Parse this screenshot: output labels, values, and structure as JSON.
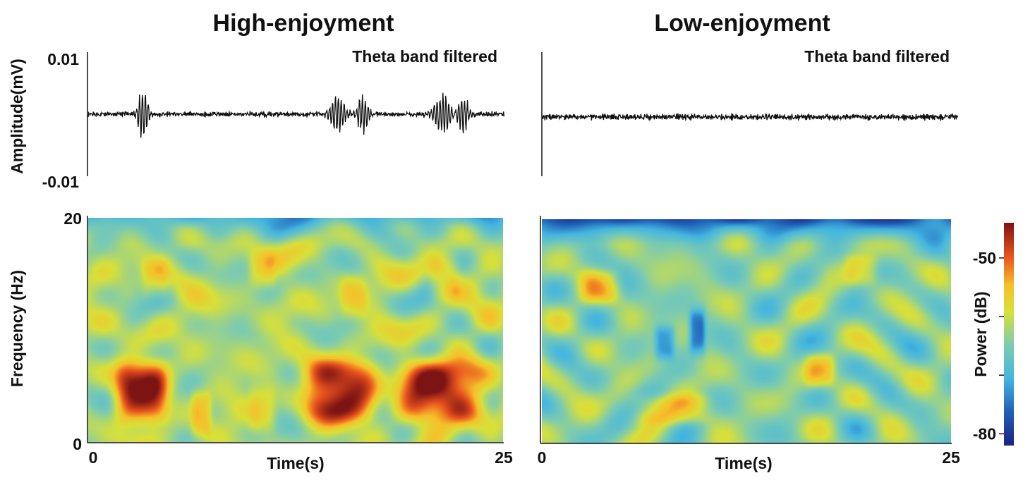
{
  "chart_data": [
    {
      "type": "line",
      "title": "High-enjoyment",
      "annotation": "Theta band filtered",
      "ylabel": "Amplitude(mV)",
      "ylim": [
        -0.01,
        0.01
      ],
      "yticks": [
        "0.01",
        "-0.01"
      ],
      "xlim": [
        0,
        25
      ],
      "noise_amplitude": 0.0006,
      "bursts": [
        {
          "t": 3.3,
          "amplitude": 0.0045,
          "width": 0.35
        },
        {
          "t": 15.0,
          "amplitude": 0.0035,
          "width": 0.5
        },
        {
          "t": 16.5,
          "amplitude": 0.0033,
          "width": 0.4
        },
        {
          "t": 21.3,
          "amplitude": 0.0035,
          "width": 0.6
        },
        {
          "t": 22.5,
          "amplitude": 0.0032,
          "width": 0.45
        }
      ]
    },
    {
      "type": "line",
      "title": "Low-enjoyment",
      "annotation": "Theta band filtered",
      "ylim": [
        -0.01,
        0.01
      ],
      "xlim": [
        0,
        25
      ],
      "noise_amplitude": 0.0007,
      "bursts": []
    },
    {
      "type": "heatmap",
      "panel": "High-enjoyment",
      "ylabel": "Frequency (Hz)",
      "xlabel": "Time(s)",
      "xlim": [
        0,
        25
      ],
      "ylim": [
        0,
        20
      ],
      "xticks": [
        "0",
        "25"
      ],
      "yticks": [
        "20",
        "0"
      ],
      "background_power_db": -62,
      "high_freq_power_db": -70,
      "hotspots": [
        {
          "t": 3.2,
          "f": 4.5,
          "power_db": -46,
          "dt": 1.6,
          "df": 2.8
        },
        {
          "t": 15.2,
          "f": 4.5,
          "power_db": -46,
          "dt": 2.2,
          "df": 2.8
        },
        {
          "t": 21.3,
          "f": 4.5,
          "power_db": -46,
          "dt": 2.6,
          "df": 2.8
        },
        {
          "t": 6.8,
          "f": 2.5,
          "power_db": -55,
          "dt": 0.6,
          "df": 2.0
        },
        {
          "t": 10.5,
          "f": 3.0,
          "power_db": -58,
          "dt": 0.8,
          "df": 2.2
        },
        {
          "t": 4.0,
          "f": 14.5,
          "power_db": -58,
          "dt": 0.8,
          "df": 1.8
        },
        {
          "t": 10.5,
          "f": 15.5,
          "power_db": -58,
          "dt": 0.8,
          "df": 1.8
        },
        {
          "t": 16.0,
          "f": 13.0,
          "power_db": -58,
          "dt": 0.8,
          "df": 2.0
        },
        {
          "t": 21.5,
          "f": 14.5,
          "power_db": -57,
          "dt": 0.9,
          "df": 2.0
        }
      ]
    },
    {
      "type": "heatmap",
      "panel": "Low-enjoyment",
      "xlabel": "Time(s)",
      "xlim": [
        0,
        25
      ],
      "ylim": [
        0,
        20
      ],
      "xticks": [
        "0",
        "25"
      ],
      "background_power_db": -64,
      "high_freq_power_db": -78,
      "hotspots": [
        {
          "t": 3.5,
          "f": 14.0,
          "power_db": -58,
          "dt": 1.2,
          "df": 1.5
        },
        {
          "t": 8.0,
          "f": 3.0,
          "power_db": -58,
          "dt": 2.5,
          "df": 1.3
        },
        {
          "t": 17.0,
          "f": 6.5,
          "power_db": -58,
          "dt": 0.9,
          "df": 1.5
        },
        {
          "t": 19.5,
          "f": 15.5,
          "power_db": -59,
          "dt": 1.0,
          "df": 1.4
        },
        {
          "t": 9.5,
          "f": 10.0,
          "power_db": -75,
          "dt": 0.5,
          "df": 2.0
        },
        {
          "t": 7.5,
          "f": 9.0,
          "power_db": -73,
          "dt": 0.6,
          "df": 1.5
        }
      ]
    },
    {
      "type": "colorbar",
      "label": "Power (dB)",
      "range": [
        -82,
        -44
      ],
      "ticks": [
        "-50",
        "-80"
      ],
      "tick_values": [
        -50,
        -80
      ],
      "minor_tick_values": [
        -60,
        -70
      ]
    }
  ]
}
